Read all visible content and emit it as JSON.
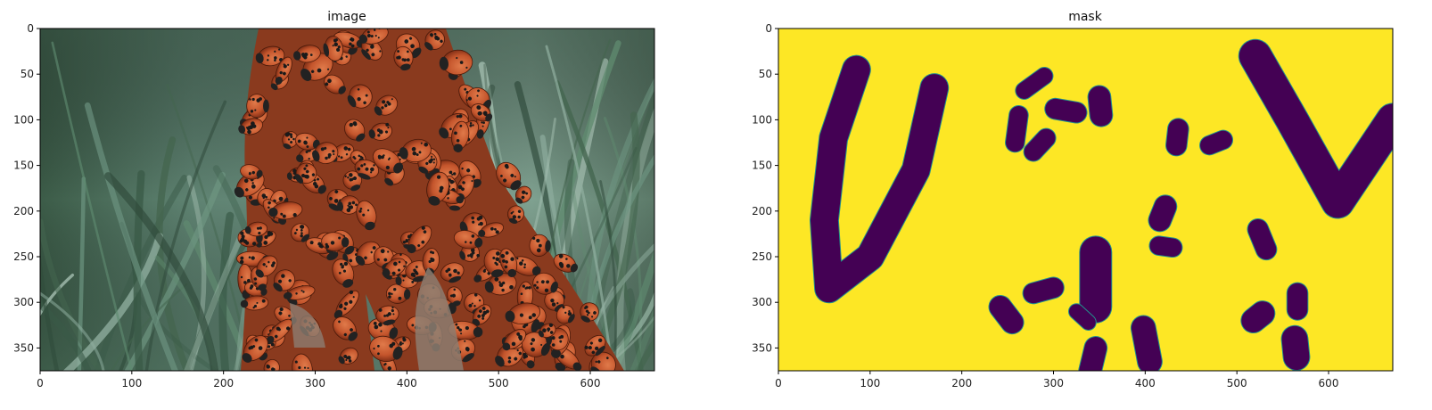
{
  "chart_data": [
    {
      "type": "image",
      "title": "image",
      "xlim": [
        0,
        670
      ],
      "ylim": [
        375,
        0
      ],
      "xticks": [
        0,
        100,
        200,
        300,
        400,
        500,
        600
      ],
      "yticks": [
        0,
        50,
        100,
        150,
        200,
        250,
        300,
        350
      ],
      "description": "photo of a dense cluster of red spotted ladybugs on a plant stem with green grass background",
      "colors": {
        "grass_dark": "#2f4a3a",
        "grass_mid": "#55786a",
        "grass_light": "#8fae9e",
        "bug_red": "#c4552c",
        "bug_dark": "#7a2b14",
        "spot": "#1a1a1a",
        "bark": "#8c7d70"
      }
    },
    {
      "type": "image",
      "title": "mask",
      "xlim": [
        0,
        670
      ],
      "ylim": [
        375,
        0
      ],
      "xticks": [
        0,
        100,
        200,
        300,
        400,
        500,
        600
      ],
      "yticks": [
        0,
        50,
        100,
        150,
        200,
        250,
        300,
        350
      ],
      "colormap": "viridis",
      "colors": {
        "background": "#fde725",
        "masked": "#440154",
        "edge": "#21918c"
      },
      "strokes": [
        {
          "shape": "polyline",
          "width": 30,
          "points": [
            [
              85,
              45
            ],
            [
              60,
              120
            ],
            [
              50,
              210
            ],
            [
              55,
              285
            ],
            [
              100,
              250
            ],
            [
              150,
              155
            ],
            [
              170,
              65
            ]
          ]
        },
        {
          "shape": "polyline",
          "width": 35,
          "points": [
            [
              520,
              30
            ],
            [
              560,
              100
            ],
            [
              610,
              190
            ],
            [
              640,
              145
            ],
            [
              670,
              100
            ]
          ]
        },
        {
          "shape": "polyline",
          "width": 18,
          "points": [
            [
              268,
              68
            ],
            [
              290,
              52
            ]
          ]
        },
        {
          "shape": "polyline",
          "width": 20,
          "points": [
            [
              262,
              95
            ],
            [
              258,
              125
            ]
          ]
        },
        {
          "shape": "polyline",
          "width": 22,
          "points": [
            [
              302,
              88
            ],
            [
              325,
              92
            ]
          ]
        },
        {
          "shape": "polyline",
          "width": 20,
          "points": [
            [
              278,
              135
            ],
            [
              292,
              120
            ]
          ]
        },
        {
          "shape": "polyline",
          "width": 24,
          "points": [
            [
              350,
              75
            ],
            [
              352,
              95
            ]
          ]
        },
        {
          "shape": "polyline",
          "width": 22,
          "points": [
            [
              436,
              110
            ],
            [
              434,
              128
            ]
          ]
        },
        {
          "shape": "polyline",
          "width": 20,
          "points": [
            [
              470,
              128
            ],
            [
              485,
              122
            ]
          ]
        },
        {
          "shape": "polyline",
          "width": 24,
          "points": [
            [
              422,
              195
            ],
            [
              416,
              210
            ]
          ]
        },
        {
          "shape": "polyline",
          "width": 20,
          "points": [
            [
              415,
              238
            ],
            [
              430,
              240
            ]
          ]
        },
        {
          "shape": "polyline",
          "width": 34,
          "points": [
            [
              346,
              245
            ],
            [
              346,
              305
            ]
          ]
        },
        {
          "shape": "polyline",
          "width": 22,
          "points": [
            [
              523,
              220
            ],
            [
              532,
              242
            ]
          ]
        },
        {
          "shape": "polyline",
          "width": 22,
          "points": [
            [
              566,
              290
            ],
            [
              566,
              308
            ]
          ]
        },
        {
          "shape": "polyline",
          "width": 26,
          "points": [
            [
              528,
              312
            ],
            [
              518,
              320
            ]
          ]
        },
        {
          "shape": "polyline",
          "width": 28,
          "points": [
            [
              563,
              340
            ],
            [
              565,
              360
            ]
          ]
        },
        {
          "shape": "polyline",
          "width": 24,
          "points": [
            [
              242,
              305
            ],
            [
              255,
              322
            ]
          ]
        },
        {
          "shape": "polyline",
          "width": 22,
          "points": [
            [
              278,
              290
            ],
            [
              300,
              284
            ]
          ]
        },
        {
          "shape": "polyline",
          "width": 16,
          "points": [
            [
              325,
              310
            ],
            [
              338,
              322
            ]
          ]
        },
        {
          "shape": "polyline",
          "width": 26,
          "points": [
            [
              398,
              328
            ],
            [
              405,
              365
            ]
          ]
        },
        {
          "shape": "polyline",
          "width": 24,
          "points": [
            [
              346,
              350
            ],
            [
              340,
              375
            ]
          ]
        }
      ]
    }
  ]
}
